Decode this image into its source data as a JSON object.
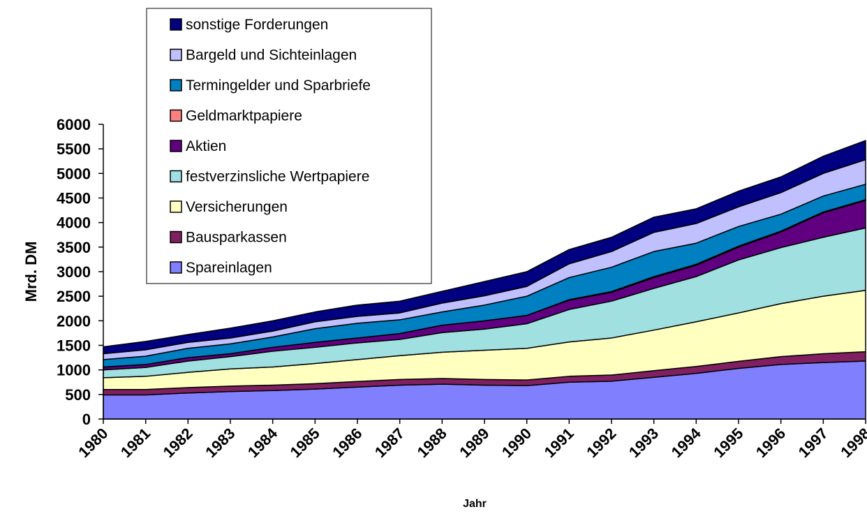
{
  "chart_data": {
    "type": "stacked_area",
    "xlabel": "Jahr",
    "ylabel": "Mrd. DM",
    "categories": [
      "1980",
      "1981",
      "1982",
      "1983",
      "1984",
      "1985",
      "1986",
      "1987",
      "1988",
      "1989",
      "1990",
      "1991",
      "1992",
      "1993",
      "1994",
      "1995",
      "1996",
      "1997",
      "1998"
    ],
    "ylim": [
      0,
      6000
    ],
    "yticks": [
      0,
      500,
      1000,
      1500,
      2000,
      2500,
      3000,
      3500,
      4000,
      4500,
      5000,
      5500,
      6000
    ],
    "legend": "top-left",
    "series": [
      {
        "name": "Spareinlagen",
        "color": "#8080ff",
        "values": [
          490,
          490,
          530,
          560,
          580,
          610,
          650,
          690,
          710,
          690,
          680,
          750,
          770,
          850,
          930,
          1030,
          1110,
          1150,
          1180
        ]
      },
      {
        "name": "Bausparkassen",
        "color": "#802060",
        "values": [
          110,
          110,
          110,
          110,
          110,
          110,
          115,
          115,
          115,
          115,
          115,
          120,
          125,
          135,
          140,
          145,
          160,
          180,
          190
        ]
      },
      {
        "name": "Versicherungen",
        "color": "#ffffc0",
        "values": [
          240,
          270,
          310,
          350,
          370,
          410,
          445,
          485,
          535,
          595,
          645,
          700,
          755,
          825,
          910,
          985,
          1080,
          1170,
          1250
        ]
      },
      {
        "name": "festverzinsliche Wertpapiere",
        "color": "#a0e0e0",
        "values": [
          160,
          180,
          230,
          250,
          320,
          330,
          340,
          330,
          400,
          430,
          500,
          660,
          750,
          850,
          920,
          1080,
          1140,
          1200,
          1270
        ]
      },
      {
        "name": "Aktien",
        "color": "#600080",
        "values": [
          60,
          60,
          70,
          60,
          80,
          100,
          100,
          120,
          150,
          170,
          170,
          190,
          180,
          220,
          230,
          260,
          320,
          500,
          560
        ]
      },
      {
        "name": "Geldmarktpapiere",
        "color": "#ff8080",
        "values": [
          0,
          0,
          0,
          0,
          0,
          0,
          0,
          0,
          0,
          0,
          0,
          10,
          15,
          20,
          20,
          20,
          15,
          15,
          15
        ]
      },
      {
        "name": "Termingelder und Sparbriefe",
        "color": "#0080c0",
        "values": [
          150,
          170,
          190,
          200,
          210,
          280,
          300,
          280,
          270,
          320,
          390,
          450,
          495,
          510,
          430,
          400,
          345,
          325,
          315
        ]
      },
      {
        "name": "Bargeld und Sichteinlagen",
        "color": "#c0c0ff",
        "values": [
          120,
          130,
          120,
          120,
          120,
          140,
          140,
          140,
          180,
          190,
          200,
          280,
          320,
          390,
          400,
          400,
          440,
          460,
          500
        ]
      },
      {
        "name": "sonstige Forderungen",
        "color": "#000080",
        "values": [
          140,
          170,
          160,
          200,
          210,
          200,
          230,
          240,
          240,
          290,
          300,
          290,
          290,
          310,
          300,
          320,
          320,
          350,
          390
        ]
      }
    ]
  }
}
